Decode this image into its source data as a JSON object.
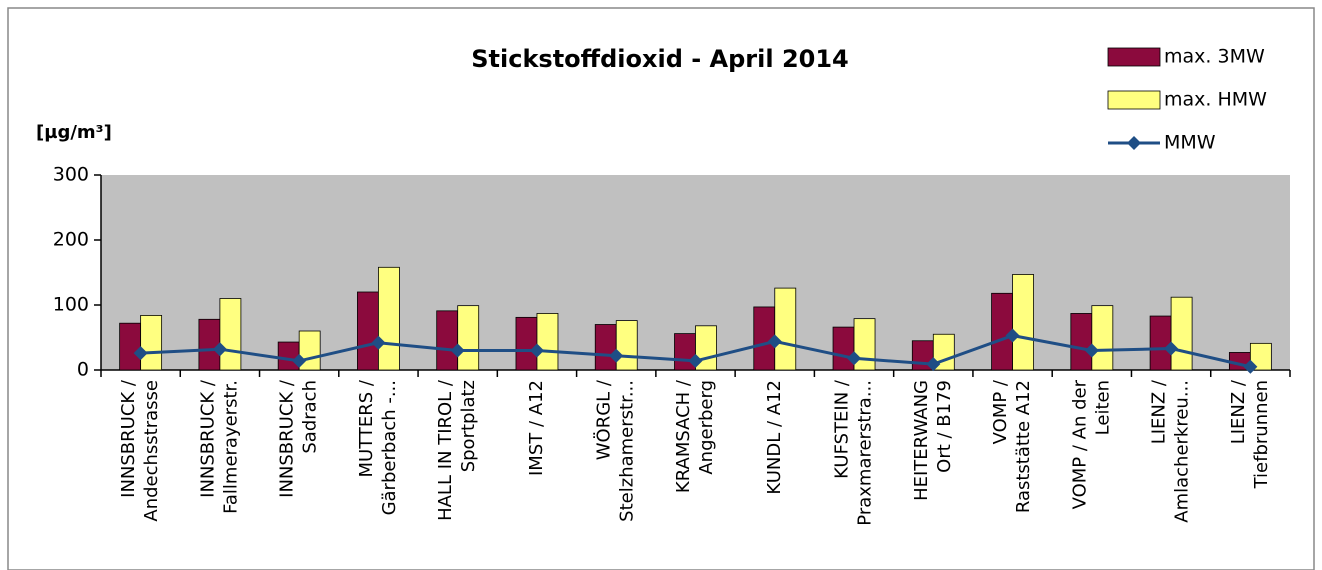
{
  "chart_data": {
    "type": "bar",
    "title": "Stickstoffdioxid - April 2014",
    "y_label": "[µg/m³]",
    "categories": [
      [
        "INNSBRUCK /",
        "Andechsstrasse"
      ],
      [
        "INNSBRUCK /",
        "Fallmerayerstr."
      ],
      [
        "INNSBRUCK /",
        "Sadrach"
      ],
      [
        "MUTTERS /",
        "Gärberbach -..."
      ],
      [
        "HALL IN TIROL /",
        "Sportplatz"
      ],
      [
        "IMST / A12"
      ],
      [
        "WÖRGL /",
        "Stelzhamerstr..."
      ],
      [
        "KRAMSACH /",
        "Angerberg"
      ],
      [
        "KUNDL / A12"
      ],
      [
        "KUFSTEIN /",
        "Praxmarerstra..."
      ],
      [
        "HEITERWANG",
        "Ort / B179"
      ],
      [
        "VOMP /",
        "Raststätte A12"
      ],
      [
        "VOMP / An der",
        "Leiten"
      ],
      [
        "LIENZ /",
        "Amlacherkreu..."
      ],
      [
        "LIENZ /",
        "Tiefbrunnen"
      ]
    ],
    "series": [
      {
        "name": "max. 3MW",
        "type": "bar",
        "color": "#8b0a3d",
        "values": [
          72,
          78,
          43,
          120,
          91,
          81,
          70,
          56,
          97,
          66,
          45,
          118,
          87,
          83,
          27
        ]
      },
      {
        "name": "max. HMW",
        "type": "bar",
        "color": "#ffff80",
        "values": [
          84,
          110,
          60,
          158,
          99,
          87,
          76,
          68,
          126,
          79,
          55,
          147,
          99,
          112,
          41
        ]
      },
      {
        "name": "MMW",
        "type": "line",
        "color": "#1f4e85",
        "values": [
          26,
          32,
          14,
          42,
          30,
          30,
          22,
          14,
          44,
          18,
          9,
          53,
          30,
          33,
          5
        ]
      }
    ],
    "ylim": [
      0,
      300
    ],
    "yticks": [
      0,
      100,
      200,
      300
    ],
    "grid": false,
    "plot_background": "#c0c0c0",
    "legend": "top-right"
  }
}
